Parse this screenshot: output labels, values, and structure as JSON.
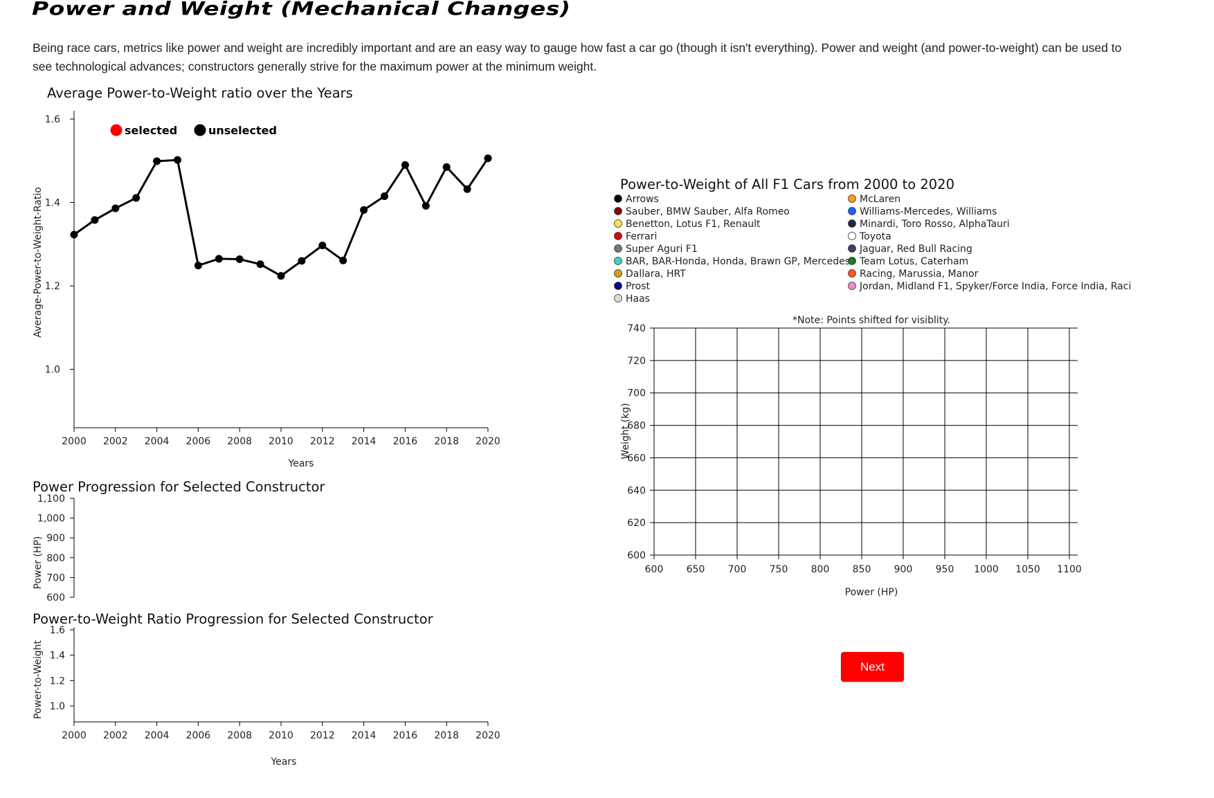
{
  "page": {
    "title": "Power and Weight (Mechanical Changes)",
    "intro": "Being race cars, metrics like power and weight are incredibly important and are an easy way to gauge how fast a car go (though it isn't everything). Power and weight (and power-to-weight) can be used to see technological advances; constructors generally strive for the maximum power at the minimum weight.",
    "next_label": "Next",
    "colors": {
      "accent": "#ff0000",
      "line": "#000000"
    }
  },
  "chart_data": [
    {
      "id": "avg",
      "type": "line",
      "title": "Average Power-to-Weight ratio over the Years",
      "xlabel": "Years",
      "ylabel": "Average-Power-to-Weight-Ratio",
      "xlim": [
        2000,
        2020
      ],
      "ylim": [
        0.86,
        1.62
      ],
      "xticks": [
        "2000",
        "2002",
        "2004",
        "2006",
        "2008",
        "2010",
        "2012",
        "2014",
        "2016",
        "2018",
        "2020"
      ],
      "yticks": [
        "1.0",
        "1.2",
        "1.4",
        "1.6"
      ],
      "legend": [
        {
          "label": "selected",
          "color": "#ff0000"
        },
        {
          "label": "unselected",
          "color": "#000000"
        }
      ],
      "x": [
        2000,
        2001,
        2002,
        2003,
        2004,
        2005,
        2006,
        2007,
        2008,
        2009,
        2010,
        2011,
        2012,
        2013,
        2014,
        2015,
        2016,
        2017,
        2018,
        2019,
        2020
      ],
      "values": [
        1.323,
        1.358,
        1.386,
        1.411,
        1.499,
        1.502,
        1.249,
        1.265,
        1.264,
        1.252,
        1.224,
        1.26,
        1.297,
        1.261,
        1.382,
        1.415,
        1.49,
        1.392,
        1.485,
        1.432,
        1.506
      ]
    },
    {
      "id": "power",
      "type": "line",
      "title": "Power Progression for Selected Constructor",
      "ylabel": "Power (HP)",
      "ylim": [
        600,
        1100
      ],
      "yticks": [
        "600",
        "700",
        "800",
        "900",
        "1,000",
        "1,100"
      ],
      "values": []
    },
    {
      "id": "ptw",
      "type": "line",
      "title": "Power-to-Weight Ratio Progression for Selected Constructor",
      "xlabel": "Years",
      "ylabel": "Power-to-Weight",
      "xlim": [
        2000,
        2020
      ],
      "ylim": [
        0.9,
        1.62
      ],
      "xticks": [
        "2000",
        "2002",
        "2004",
        "2006",
        "2008",
        "2010",
        "2012",
        "2014",
        "2016",
        "2018",
        "2020"
      ],
      "yticks": [
        "1.0",
        "1.2",
        "1.4",
        "1.6"
      ],
      "values": []
    },
    {
      "id": "scatter",
      "type": "scatter",
      "title": "Power-to-Weight of All F1 Cars from 2000 to 2020",
      "note": "*Note: Points shifted for visiblity.",
      "xlabel": "Power (HP)",
      "ylabel": "Weight (kg)",
      "xlim": [
        600,
        1100
      ],
      "ylim": [
        600,
        740
      ],
      "grid": true,
      "xticks": [
        "600",
        "650",
        "700",
        "750",
        "800",
        "850",
        "900",
        "950",
        "1000",
        "1050",
        "1100"
      ],
      "yticks": [
        "600",
        "620",
        "640",
        "660",
        "680",
        "700",
        "720",
        "740"
      ],
      "legend_left": [
        {
          "label": "Arrows",
          "color": "#000000"
        },
        {
          "label": "Sauber, BMW Sauber, Alfa Romeo",
          "color": "#8b0000"
        },
        {
          "label": "Benetton, Lotus F1, Renault",
          "color": "#ffe34d"
        },
        {
          "label": "Ferrari",
          "color": "#e00000"
        },
        {
          "label": "Super Aguri F1",
          "color": "#777777"
        },
        {
          "label": "BAR, BAR-Honda, Honda, Brawn GP, Mercedes",
          "color": "#40d0c0"
        },
        {
          "label": "Dallara, HRT",
          "color": "#d4a017"
        },
        {
          "label": "Prost",
          "color": "#00008b"
        },
        {
          "label": "Haas",
          "color": "#dcdcdc"
        }
      ],
      "legend_right": [
        {
          "label": "McLaren",
          "color": "#ff9a1f"
        },
        {
          "label": "Williams-Mercedes, Williams",
          "color": "#1e5eff"
        },
        {
          "label": "Minardi, Toro Rosso, AlphaTauri",
          "color": "#1b2a44"
        },
        {
          "label": "Toyota",
          "color": "#ffffff"
        },
        {
          "label": "Jaguar, Red Bull Racing",
          "color": "#3a3f66"
        },
        {
          "label": "Team Lotus, Caterham",
          "color": "#137a2e"
        },
        {
          "label": "Racing, Marussia, Manor",
          "color": "#ff5522"
        },
        {
          "label": "Jordan, Midland F1, Spyker/Force India, Force India, Raci",
          "color": "#f08cc8"
        }
      ],
      "points": []
    }
  ]
}
